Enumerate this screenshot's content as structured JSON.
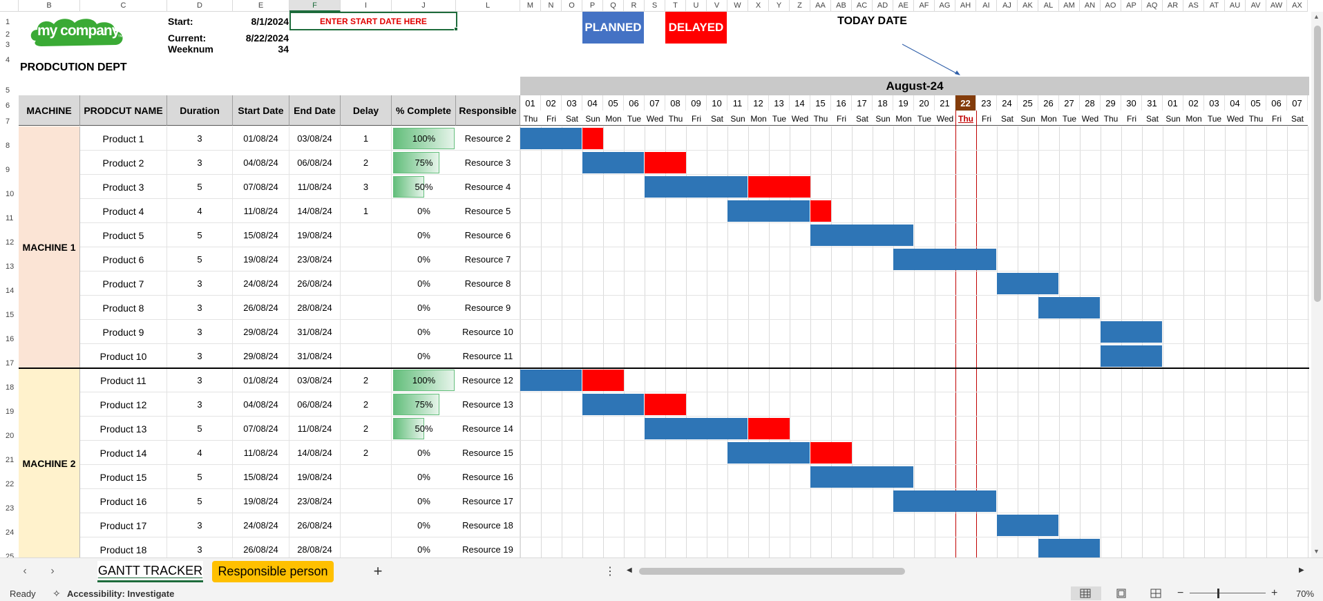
{
  "columns": [
    "B",
    "C",
    "D",
    "E",
    "F",
    "I",
    "J",
    "L",
    "M",
    "N",
    "O",
    "P",
    "Q",
    "R",
    "S",
    "T",
    "U",
    "V",
    "W",
    "X",
    "Y",
    "Z",
    "AA",
    "AB",
    "AC",
    "AD",
    "AE",
    "AF",
    "AG",
    "AH",
    "AI",
    "AJ",
    "AK",
    "AL",
    "AM",
    "AN",
    "AO",
    "AP",
    "AQ",
    "AR",
    "AS",
    "AT",
    "AU",
    "AV",
    "AW",
    "AX"
  ],
  "row_numbers": [
    "1",
    "2",
    "3",
    "4",
    "5",
    "6",
    "7",
    "8",
    "9",
    "10",
    "11",
    "12",
    "13",
    "14",
    "15",
    "16",
    "17",
    "18",
    "19",
    "20",
    "21",
    "22",
    "23",
    "24",
    "25"
  ],
  "logo": {
    "text": "my company",
    "tm": "™"
  },
  "info": {
    "start_label": "Start:",
    "start_value": "8/1/2024",
    "current_label": "Current:",
    "current_value": "8/22/2024",
    "weeknum_label": "Weeknum",
    "weeknum_value": "34",
    "enter_hint": "ENTER START DATE HERE",
    "dept": "PRODCUTION DEPT"
  },
  "legend": {
    "planned": "PLANNED",
    "delayed": "DELAYED",
    "today": "TODAY DATE",
    "planned_color": "#4472c4",
    "delayed_color": "#ff0000"
  },
  "headers": {
    "machine": "MACHINE",
    "product": "PRODCUT NAME",
    "duration": "Duration",
    "start": "Start Date",
    "end": "End Date",
    "delay": "Delay",
    "pct": "% Complete",
    "resp": "Responsible"
  },
  "month_label": "August-24",
  "days": [
    "01",
    "02",
    "03",
    "04",
    "05",
    "06",
    "07",
    "08",
    "09",
    "10",
    "11",
    "12",
    "13",
    "14",
    "15",
    "16",
    "17",
    "18",
    "19",
    "20",
    "21",
    "22",
    "23",
    "24",
    "25",
    "26",
    "27",
    "28",
    "29",
    "30",
    "31",
    "01",
    "02",
    "03",
    "04",
    "05",
    "06",
    "07"
  ],
  "weekdays": [
    "Thu",
    "Fri",
    "Sat",
    "Sun",
    "Mon",
    "Tue",
    "Wed",
    "Thu",
    "Fri",
    "Sat",
    "Sun",
    "Mon",
    "Tue",
    "Wed",
    "Thu",
    "Fri",
    "Sat",
    "Sun",
    "Mon",
    "Tue",
    "Wed",
    "Thu",
    "Fri",
    "Sat",
    "Sun",
    "Mon",
    "Tue",
    "Wed",
    "Thu",
    "Fri",
    "Sat",
    "Sun",
    "Mon",
    "Tue",
    "Wed",
    "Thu",
    "Fri",
    "Sat"
  ],
  "today_day": "22",
  "machines": [
    "MACHINE 1",
    "MACHINE 2"
  ],
  "rows": [
    {
      "product": "Product 1",
      "duration": "3",
      "start": "01/08/24",
      "end": "03/08/24",
      "delay": "1",
      "pct": "100%",
      "pct_value": 1.0,
      "resp": "Resource 2",
      "startDay": 1,
      "dur": 3,
      "delayDays": 1
    },
    {
      "product": "Product 2",
      "duration": "3",
      "start": "04/08/24",
      "end": "06/08/24",
      "delay": "2",
      "pct": "75%",
      "pct_value": 0.75,
      "resp": "Resource 3",
      "startDay": 4,
      "dur": 3,
      "delayDays": 2
    },
    {
      "product": "Product 3",
      "duration": "5",
      "start": "07/08/24",
      "end": "11/08/24",
      "delay": "3",
      "pct": "50%",
      "pct_value": 0.5,
      "resp": "Resource 4",
      "startDay": 7,
      "dur": 5,
      "delayDays": 3
    },
    {
      "product": "Product 4",
      "duration": "4",
      "start": "11/08/24",
      "end": "14/08/24",
      "delay": "1",
      "pct": "0%",
      "pct_value": 0,
      "resp": "Resource 5",
      "startDay": 11,
      "dur": 4,
      "delayDays": 1
    },
    {
      "product": "Product 5",
      "duration": "5",
      "start": "15/08/24",
      "end": "19/08/24",
      "delay": "",
      "pct": "0%",
      "pct_value": 0,
      "resp": "Resource 6",
      "startDay": 15,
      "dur": 5,
      "delayDays": 0
    },
    {
      "product": "Product 6",
      "duration": "5",
      "start": "19/08/24",
      "end": "23/08/24",
      "delay": "",
      "pct": "0%",
      "pct_value": 0,
      "resp": "Resource 7",
      "startDay": 19,
      "dur": 5,
      "delayDays": 0
    },
    {
      "product": "Product 7",
      "duration": "3",
      "start": "24/08/24",
      "end": "26/08/24",
      "delay": "",
      "pct": "0%",
      "pct_value": 0,
      "resp": "Resource 8",
      "startDay": 24,
      "dur": 3,
      "delayDays": 0
    },
    {
      "product": "Product 8",
      "duration": "3",
      "start": "26/08/24",
      "end": "28/08/24",
      "delay": "",
      "pct": "0%",
      "pct_value": 0,
      "resp": "Resource 9",
      "startDay": 26,
      "dur": 3,
      "delayDays": 0
    },
    {
      "product": "Product 9",
      "duration": "3",
      "start": "29/08/24",
      "end": "31/08/24",
      "delay": "",
      "pct": "0%",
      "pct_value": 0,
      "resp": "Resource 10",
      "startDay": 29,
      "dur": 3,
      "delayDays": 0
    },
    {
      "product": "Product 10",
      "duration": "3",
      "start": "29/08/24",
      "end": "31/08/24",
      "delay": "",
      "pct": "0%",
      "pct_value": 0,
      "resp": "Resource 11",
      "startDay": 29,
      "dur": 3,
      "delayDays": 0
    },
    {
      "product": "Product 11",
      "duration": "3",
      "start": "01/08/24",
      "end": "03/08/24",
      "delay": "2",
      "pct": "100%",
      "pct_value": 1.0,
      "resp": "Resource 12",
      "startDay": 1,
      "dur": 3,
      "delayDays": 2
    },
    {
      "product": "Product 12",
      "duration": "3",
      "start": "04/08/24",
      "end": "06/08/24",
      "delay": "2",
      "pct": "75%",
      "pct_value": 0.75,
      "resp": "Resource 13",
      "startDay": 4,
      "dur": 3,
      "delayDays": 2
    },
    {
      "product": "Product 13",
      "duration": "5",
      "start": "07/08/24",
      "end": "11/08/24",
      "delay": "2",
      "pct": "50%",
      "pct_value": 0.5,
      "resp": "Resource 14",
      "startDay": 7,
      "dur": 5,
      "delayDays": 2
    },
    {
      "product": "Product 14",
      "duration": "4",
      "start": "11/08/24",
      "end": "14/08/24",
      "delay": "2",
      "pct": "0%",
      "pct_value": 0,
      "resp": "Resource 15",
      "startDay": 11,
      "dur": 4,
      "delayDays": 2
    },
    {
      "product": "Product 15",
      "duration": "5",
      "start": "15/08/24",
      "end": "19/08/24",
      "delay": "",
      "pct": "0%",
      "pct_value": 0,
      "resp": "Resource 16",
      "startDay": 15,
      "dur": 5,
      "delayDays": 0
    },
    {
      "product": "Product 16",
      "duration": "5",
      "start": "19/08/24",
      "end": "23/08/24",
      "delay": "",
      "pct": "0%",
      "pct_value": 0,
      "resp": "Resource 17",
      "startDay": 19,
      "dur": 5,
      "delayDays": 0
    },
    {
      "product": "Product 17",
      "duration": "3",
      "start": "24/08/24",
      "end": "26/08/24",
      "delay": "",
      "pct": "0%",
      "pct_value": 0,
      "resp": "Resource 18",
      "startDay": 24,
      "dur": 3,
      "delayDays": 0
    },
    {
      "product": "Product 18",
      "duration": "3",
      "start": "26/08/24",
      "end": "28/08/24",
      "delay": "",
      "pct": "0%",
      "pct_value": 0,
      "resp": "Resource 19",
      "startDay": 26,
      "dur": 3,
      "delayDays": 0
    }
  ],
  "tabs": {
    "active": "GANTT TRACKER",
    "second": "Responsible person",
    "add": "+"
  },
  "status": {
    "ready": "Ready",
    "accessibility": "Accessibility: Investigate",
    "zoom": "70%"
  }
}
